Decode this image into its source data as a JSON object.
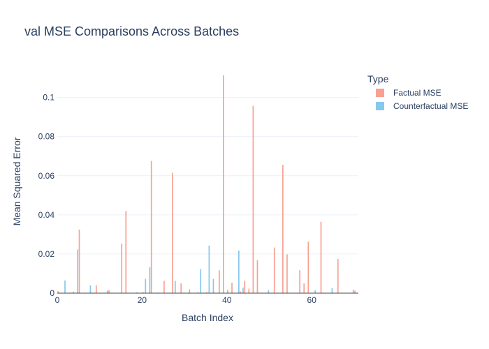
{
  "chart_data": {
    "type": "bar",
    "title": "val MSE Comparisons Across Batches",
    "xlabel": "Batch Index",
    "ylabel": "Mean Squared Error",
    "xlim": [
      0,
      71
    ],
    "ylim": [
      0,
      0.117
    ],
    "x_ticks": [
      0,
      20,
      40,
      60
    ],
    "x_tick_labels": [
      "0",
      "20",
      "40",
      "60"
    ],
    "y_ticks": [
      0,
      0.02,
      0.04,
      0.06,
      0.08,
      0.1
    ],
    "y_tick_labels": [
      "0",
      "0.02",
      "0.04",
      "0.06",
      "0.08",
      "0.1"
    ],
    "grid": true,
    "legend": {
      "title": "Type",
      "placement": "top-right"
    },
    "series": [
      {
        "name": "Factual MSE",
        "color": "#F8A191",
        "points": [
          [
            0,
            0.001
          ],
          [
            3,
            0.0003
          ],
          [
            5,
            0.0325
          ],
          [
            9,
            0.004
          ],
          [
            12,
            0.0015
          ],
          [
            15,
            0.0253
          ],
          [
            16,
            0.042
          ],
          [
            20,
            0.0005
          ],
          [
            22,
            0.0675
          ],
          [
            25,
            0.0063
          ],
          [
            27,
            0.0615
          ],
          [
            29,
            0.005
          ],
          [
            31,
            0.002
          ],
          [
            33,
            0.0005
          ],
          [
            35,
            0.0005
          ],
          [
            38,
            0.0117
          ],
          [
            39,
            0.1113
          ],
          [
            40,
            0.0017
          ],
          [
            41,
            0.0053
          ],
          [
            43,
            0.0008
          ],
          [
            44,
            0.0063
          ],
          [
            45,
            0.0023
          ],
          [
            46,
            0.0957
          ],
          [
            47,
            0.0168
          ],
          [
            51,
            0.0233
          ],
          [
            53,
            0.0655
          ],
          [
            54,
            0.0198
          ],
          [
            57,
            0.0117
          ],
          [
            58,
            0.005
          ],
          [
            59,
            0.0263
          ],
          [
            62,
            0.0365
          ],
          [
            66,
            0.0175
          ],
          [
            70,
            0.0013
          ]
        ]
      },
      {
        "name": "Counterfactual MSE",
        "color": "#87C8EE",
        "points": [
          [
            2,
            0.0065
          ],
          [
            4,
            0.0008
          ],
          [
            5,
            0.0223
          ],
          [
            8,
            0.004
          ],
          [
            12,
            0.0013
          ],
          [
            19,
            0.0005
          ],
          [
            21,
            0.0073
          ],
          [
            22,
            0.0133
          ],
          [
            24,
            0.0003
          ],
          [
            28,
            0.0063
          ],
          [
            34,
            0.0123
          ],
          [
            36,
            0.0243
          ],
          [
            37,
            0.0073
          ],
          [
            43,
            0.0218
          ],
          [
            44,
            0.0028
          ],
          [
            50,
            0.0015
          ],
          [
            61,
            0.0015
          ],
          [
            65,
            0.0025
          ],
          [
            70,
            0.0018
          ]
        ]
      }
    ]
  }
}
